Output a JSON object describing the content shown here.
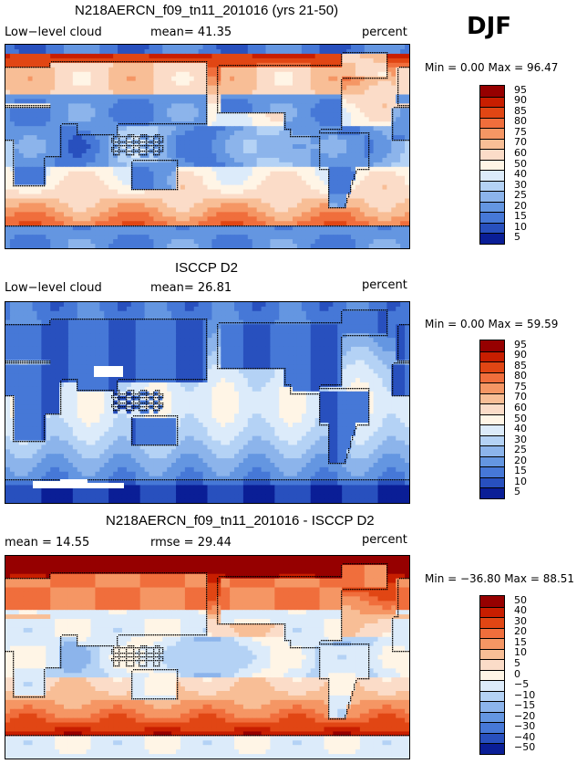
{
  "season": "DJF",
  "chart_data": [
    {
      "type": "heatmap",
      "title": "N218AERCN_f09_tn11_201016 (yrs 21-50)",
      "left_label": "Low−level cloud",
      "center_label": "mean=  41.35",
      "right_label": "percent",
      "minmax": "Min =    0.00 Max =   96.47",
      "mean": 41.35,
      "min": 0.0,
      "max": 96.47,
      "units": "percent",
      "colorbar_ticks": [
        "95",
        "90",
        "85",
        "80",
        "75",
        "70",
        "60",
        "50",
        "40",
        "30",
        "25",
        "20",
        "15",
        "10",
        "5"
      ],
      "field": "model"
    },
    {
      "type": "heatmap",
      "title": "ISCCP D2",
      "left_label": "Low−level cloud",
      "center_label": "mean=  26.81",
      "right_label": "percent",
      "minmax": "Min =    0.00 Max =   59.59",
      "mean": 26.81,
      "min": 0.0,
      "max": 59.59,
      "units": "percent",
      "colorbar_ticks": [
        "95",
        "90",
        "85",
        "80",
        "75",
        "70",
        "60",
        "50",
        "40",
        "30",
        "25",
        "20",
        "15",
        "10",
        "5"
      ],
      "field": "obs"
    },
    {
      "type": "heatmap",
      "title": "N218AERCN_f09_tn11_201016 - ISCCP D2",
      "left_label": "mean =  14.55",
      "center_label": "rmse =  29.44",
      "right_label": "percent",
      "minmax": "Min = −36.80 Max =   88.51",
      "mean": 14.55,
      "rmse": 29.44,
      "min": -36.8,
      "max": 88.51,
      "units": "percent",
      "colorbar_ticks": [
        "50",
        "40",
        "30",
        "20",
        "15",
        "10",
        "5",
        "0",
        "−5",
        "−10",
        "−15",
        "−20",
        "−30",
        "−40",
        "−50"
      ],
      "field": "diff"
    }
  ],
  "colors": {
    "scale": [
      "#960000",
      "#c81e00",
      "#e14614",
      "#f06e3c",
      "#f59664",
      "#f8be96",
      "#fbdcc8",
      "#fff5e6",
      "#dcebfa",
      "#b4d2f5",
      "#8cb4eb",
      "#6496e1",
      "#4678d7",
      "#2850be",
      "#0a1e96"
    ]
  }
}
